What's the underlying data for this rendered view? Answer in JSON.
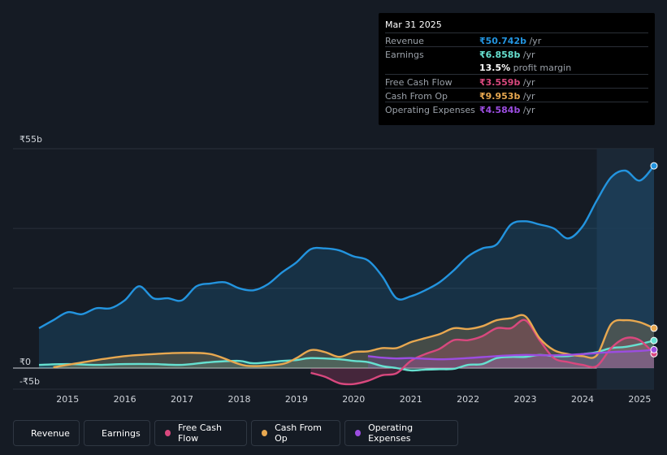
{
  "tooltip": {
    "date": "Mar 31 2025",
    "rows": [
      {
        "label": "Revenue",
        "value": "₹50.742b",
        "unit": " /yr",
        "color": "#2394df"
      },
      {
        "label": "Earnings",
        "value": "₹6.858b",
        "unit": " /yr",
        "color": "#66e0d0"
      },
      {
        "label": "",
        "value": "13.5%",
        "unit": " profit margin",
        "color": "#ffffff"
      },
      {
        "label": "Free Cash Flow",
        "value": "₹3.559b",
        "unit": " /yr",
        "color": "#d9487e"
      },
      {
        "label": "Cash From Op",
        "value": "₹9.953b",
        "unit": " /yr",
        "color": "#e8a850"
      },
      {
        "label": "Operating Expenses",
        "value": "₹4.584b",
        "unit": " /yr",
        "color": "#9b4de0"
      }
    ]
  },
  "legend": [
    {
      "label": "Revenue",
      "color": "#2394df"
    },
    {
      "label": "Earnings",
      "color": "#66e0d0"
    },
    {
      "label": "Free Cash Flow",
      "color": "#d9487e"
    },
    {
      "label": "Cash From Op",
      "color": "#e8a850"
    },
    {
      "label": "Operating Expenses",
      "color": "#9b4de0"
    }
  ],
  "chart_data": {
    "type": "area",
    "ylim": [
      -5,
      55
    ],
    "xlim": [
      2014.5,
      2025.25
    ],
    "y_tick_labels": [
      {
        "value": 55,
        "label": "₹55b"
      },
      {
        "value": 0,
        "label": "₹0"
      },
      {
        "value": -5,
        "label": "-₹5b"
      }
    ],
    "x_tick_labels": [
      "2015",
      "2016",
      "2017",
      "2018",
      "2019",
      "2020",
      "2021",
      "2022",
      "2023",
      "2024",
      "2025"
    ],
    "x_tick_values": [
      2015,
      2016,
      2017,
      2018,
      2019,
      2020,
      2021,
      2022,
      2023,
      2024,
      2025
    ],
    "highlight_start": 2024.25,
    "series": [
      {
        "name": "Revenue",
        "color": "#2394df",
        "fill": true,
        "points": [
          [
            2014.5,
            10
          ],
          [
            2014.75,
            12
          ],
          [
            2015,
            14
          ],
          [
            2015.25,
            13.5
          ],
          [
            2015.5,
            15
          ],
          [
            2015.75,
            15
          ],
          [
            2016,
            17
          ],
          [
            2016.25,
            20.5
          ],
          [
            2016.5,
            17.5
          ],
          [
            2016.75,
            17.5
          ],
          [
            2017,
            17
          ],
          [
            2017.25,
            20.5
          ],
          [
            2017.5,
            21.2
          ],
          [
            2017.75,
            21.5
          ],
          [
            2018,
            20
          ],
          [
            2018.25,
            19.5
          ],
          [
            2018.5,
            21
          ],
          [
            2018.75,
            24
          ],
          [
            2019,
            26.5
          ],
          [
            2019.25,
            29.8
          ],
          [
            2019.5,
            30
          ],
          [
            2019.75,
            29.5
          ],
          [
            2020,
            28
          ],
          [
            2020.25,
            27
          ],
          [
            2020.5,
            23
          ],
          [
            2020.75,
            17.5
          ],
          [
            2021,
            18
          ],
          [
            2021.25,
            19.5
          ],
          [
            2021.5,
            21.5
          ],
          [
            2021.75,
            24.5
          ],
          [
            2022,
            28
          ],
          [
            2022.25,
            30
          ],
          [
            2022.5,
            31
          ],
          [
            2022.75,
            36
          ],
          [
            2023,
            36.8
          ],
          [
            2023.25,
            36
          ],
          [
            2023.5,
            35
          ],
          [
            2023.75,
            32.5
          ],
          [
            2024,
            35.5
          ],
          [
            2024.25,
            42
          ],
          [
            2024.5,
            47.8
          ],
          [
            2024.75,
            49.5
          ],
          [
            2025,
            47
          ],
          [
            2025.25,
            50.7
          ]
        ]
      },
      {
        "name": "Earnings",
        "color": "#66e0d0",
        "fill": true,
        "points": [
          [
            2014.5,
            0.8
          ],
          [
            2015,
            1
          ],
          [
            2015.5,
            0.8
          ],
          [
            2016,
            1
          ],
          [
            2016.5,
            1
          ],
          [
            2017,
            0.8
          ],
          [
            2017.5,
            1.5
          ],
          [
            2018,
            1.8
          ],
          [
            2018.25,
            1.2
          ],
          [
            2018.75,
            1.8
          ],
          [
            2019,
            2
          ],
          [
            2019.25,
            2.5
          ],
          [
            2019.75,
            2.2
          ],
          [
            2020,
            1.8
          ],
          [
            2020.25,
            1.5
          ],
          [
            2020.5,
            0.5
          ],
          [
            2020.75,
            0
          ],
          [
            2021,
            -0.6
          ],
          [
            2021.25,
            -0.4
          ],
          [
            2021.5,
            -0.3
          ],
          [
            2021.75,
            -0.2
          ],
          [
            2022,
            0.8
          ],
          [
            2022.25,
            1
          ],
          [
            2022.5,
            2.5
          ],
          [
            2022.75,
            2.8
          ],
          [
            2023,
            2.8
          ],
          [
            2023.25,
            3.3
          ],
          [
            2023.5,
            3
          ],
          [
            2023.75,
            3
          ],
          [
            2024,
            3.5
          ],
          [
            2024.25,
            4
          ],
          [
            2024.5,
            5
          ],
          [
            2024.75,
            5.3
          ],
          [
            2025,
            6
          ],
          [
            2025.25,
            6.9
          ]
        ]
      },
      {
        "name": "Free Cash Flow",
        "color": "#d9487e",
        "fill": true,
        "points": [
          [
            2019.25,
            -1.2
          ],
          [
            2019.5,
            -2.2
          ],
          [
            2019.75,
            -3.8
          ],
          [
            2020,
            -4
          ],
          [
            2020.25,
            -3.2
          ],
          [
            2020.5,
            -1.8
          ],
          [
            2020.75,
            -1.3
          ],
          [
            2021,
            1.8
          ],
          [
            2021.25,
            3.5
          ],
          [
            2021.5,
            4.8
          ],
          [
            2021.75,
            7
          ],
          [
            2022,
            7
          ],
          [
            2022.25,
            8
          ],
          [
            2022.5,
            10
          ],
          [
            2022.75,
            10
          ],
          [
            2023,
            12
          ],
          [
            2023.25,
            7
          ],
          [
            2023.5,
            2.5
          ],
          [
            2023.75,
            1.5
          ],
          [
            2024,
            0.8
          ],
          [
            2024.25,
            0.5
          ],
          [
            2024.5,
            5
          ],
          [
            2024.75,
            7.5
          ],
          [
            2025,
            7
          ],
          [
            2025.25,
            3.6
          ]
        ]
      },
      {
        "name": "Cash From Op",
        "color": "#e8a850",
        "fill": true,
        "points": [
          [
            2014.75,
            0.2
          ],
          [
            2015,
            0.8
          ],
          [
            2015.5,
            2
          ],
          [
            2016,
            3
          ],
          [
            2016.5,
            3.5
          ],
          [
            2017,
            3.8
          ],
          [
            2017.5,
            3.5
          ],
          [
            2018,
            1
          ],
          [
            2018.25,
            0.5
          ],
          [
            2018.75,
            1
          ],
          [
            2019,
            2.5
          ],
          [
            2019.25,
            4.5
          ],
          [
            2019.5,
            4
          ],
          [
            2019.75,
            2.8
          ],
          [
            2020,
            4
          ],
          [
            2020.25,
            4.2
          ],
          [
            2020.5,
            5
          ],
          [
            2020.75,
            5
          ],
          [
            2021,
            6.5
          ],
          [
            2021.25,
            7.5
          ],
          [
            2021.5,
            8.5
          ],
          [
            2021.75,
            10
          ],
          [
            2022,
            9.8
          ],
          [
            2022.25,
            10.5
          ],
          [
            2022.5,
            12
          ],
          [
            2022.75,
            12.5
          ],
          [
            2023,
            13
          ],
          [
            2023.25,
            7.5
          ],
          [
            2023.5,
            4.5
          ],
          [
            2023.75,
            3.5
          ],
          [
            2024,
            3
          ],
          [
            2024.25,
            3.2
          ],
          [
            2024.5,
            11
          ],
          [
            2024.75,
            12
          ],
          [
            2025,
            11.5
          ],
          [
            2025.25,
            10
          ]
        ]
      },
      {
        "name": "Operating Expenses",
        "color": "#9b4de0",
        "fill": true,
        "points": [
          [
            2020.25,
            3
          ],
          [
            2020.5,
            2.6
          ],
          [
            2020.75,
            2.4
          ],
          [
            2021,
            2.5
          ],
          [
            2021.5,
            2.2
          ],
          [
            2022,
            2.5
          ],
          [
            2022.5,
            3
          ],
          [
            2023,
            3.3
          ],
          [
            2023.5,
            3.2
          ],
          [
            2024,
            3.5
          ],
          [
            2024.5,
            4
          ],
          [
            2025,
            4.3
          ],
          [
            2025.25,
            4.6
          ]
        ]
      }
    ]
  }
}
